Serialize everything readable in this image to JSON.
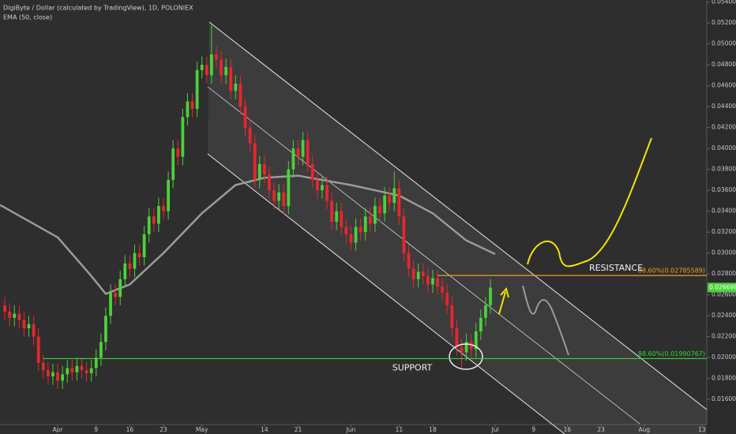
{
  "chart_data": {
    "type": "candlestick",
    "title": "DigiByte / Dollar (calculated by TradingView), 1D, POLONIEX",
    "x": [
      "Mar 21",
      "Mar 22",
      "Mar 23",
      "Mar 24",
      "Mar 25",
      "Mar 26",
      "Mar 27",
      "Mar 28",
      "Mar 29",
      "Mar 30",
      "Mar 31",
      "Apr 1",
      "Apr 2",
      "Apr 3",
      "Apr 4",
      "Apr 5",
      "Apr 6",
      "Apr 7",
      "Apr 8",
      "Apr 9",
      "Apr 10",
      "Apr 11",
      "Apr 12",
      "Apr 13",
      "Apr 14",
      "Apr 15",
      "Apr 16",
      "Apr 17",
      "Apr 18",
      "Apr 19",
      "Apr 20",
      "Apr 21",
      "Apr 22",
      "Apr 23",
      "Apr 24",
      "Apr 25",
      "Apr 26",
      "Apr 27",
      "Apr 28",
      "Apr 29",
      "Apr 30",
      "May 1",
      "May 2",
      "May 3",
      "May 4",
      "May 5",
      "May 6",
      "May 7",
      "May 8",
      "May 9",
      "May 10",
      "May 11",
      "May 12",
      "May 13",
      "May 14",
      "May 15",
      "May 16",
      "May 17",
      "May 18",
      "May 19",
      "May 20",
      "May 21",
      "May 22",
      "May 23",
      "May 24",
      "May 25",
      "May 26",
      "May 27",
      "May 28",
      "May 29",
      "May 30",
      "May 31",
      "Jun 1",
      "Jun 2",
      "Jun 3",
      "Jun 4",
      "Jun 5",
      "Jun 6",
      "Jun 7",
      "Jun 8",
      "Jun 9",
      "Jun 10",
      "Jun 11",
      "Jun 12",
      "Jun 13",
      "Jun 14",
      "Jun 15",
      "Jun 16",
      "Jun 17",
      "Jun 18",
      "Jun 19",
      "Jun 20",
      "Jun 21",
      "Jun 22",
      "Jun 23",
      "Jun 24",
      "Jun 25",
      "Jun 26",
      "Jun 27",
      "Jun 28",
      "Jun 29",
      "Jun 30"
    ],
    "open": [
      0.025,
      0.0244,
      0.0238,
      0.0242,
      0.0236,
      0.0228,
      0.0232,
      0.022,
      0.0195,
      0.0188,
      0.0182,
      0.0186,
      0.0178,
      0.0184,
      0.019,
      0.0186,
      0.0192,
      0.0188,
      0.0185,
      0.019,
      0.02,
      0.0215,
      0.024,
      0.0262,
      0.0258,
      0.0275,
      0.029,
      0.0285,
      0.03,
      0.0296,
      0.0318,
      0.0335,
      0.0328,
      0.0345,
      0.034,
      0.037,
      0.04,
      0.0392,
      0.043,
      0.0445,
      0.0438,
      0.0475,
      0.048,
      0.047,
      0.049,
      0.0485,
      0.047,
      0.0478,
      0.0455,
      0.0462,
      0.044,
      0.042,
      0.0405,
      0.037,
      0.0385,
      0.0375,
      0.036,
      0.035,
      0.0358,
      0.0345,
      0.038,
      0.04,
      0.0392,
      0.0408,
      0.0385,
      0.037,
      0.036,
      0.0365,
      0.035,
      0.033,
      0.034,
      0.0325,
      0.0318,
      0.031,
      0.0325,
      0.032,
      0.0335,
      0.0328,
      0.0345,
      0.0338,
      0.0355,
      0.0348,
      0.0362,
      0.0335,
      0.03,
      0.0285,
      0.0275,
      0.0282,
      0.0278,
      0.027,
      0.0276,
      0.0268,
      0.0262,
      0.025,
      0.0228,
      0.021,
      0.0205,
      0.0215,
      0.0208,
      0.0225,
      0.0238,
      0.025
    ],
    "high": [
      0.0258,
      0.0252,
      0.025,
      0.025,
      0.0244,
      0.024,
      0.024,
      0.0228,
      0.0203,
      0.0196,
      0.0194,
      0.0194,
      0.0192,
      0.0198,
      0.0198,
      0.02,
      0.02,
      0.0196,
      0.0198,
      0.0208,
      0.0223,
      0.0248,
      0.027,
      0.027,
      0.0283,
      0.0298,
      0.0298,
      0.0308,
      0.0308,
      0.0326,
      0.0343,
      0.0343,
      0.0353,
      0.0353,
      0.0378,
      0.0408,
      0.0408,
      0.0438,
      0.0453,
      0.0453,
      0.0483,
      0.0488,
      0.0488,
      0.0518,
      0.0498,
      0.0493,
      0.0486,
      0.0486,
      0.047,
      0.047,
      0.0448,
      0.0428,
      0.0413,
      0.0393,
      0.0393,
      0.0383,
      0.0368,
      0.0366,
      0.0366,
      0.0388,
      0.0408,
      0.0408,
      0.0416,
      0.0416,
      0.0393,
      0.0378,
      0.0373,
      0.0373,
      0.0358,
      0.0348,
      0.0348,
      0.0333,
      0.0326,
      0.0333,
      0.0333,
      0.0343,
      0.0343,
      0.0353,
      0.0353,
      0.0363,
      0.0363,
      0.0378,
      0.037,
      0.0343,
      0.0308,
      0.0293,
      0.029,
      0.029,
      0.0286,
      0.0284,
      0.0284,
      0.0276,
      0.027,
      0.0258,
      0.0236,
      0.0218,
      0.0223,
      0.0223,
      0.0233,
      0.0246,
      0.0258,
      0.0275
    ],
    "low": [
      0.0236,
      0.023,
      0.023,
      0.0228,
      0.022,
      0.022,
      0.0212,
      0.0187,
      0.018,
      0.0174,
      0.0174,
      0.017,
      0.017,
      0.0176,
      0.0178,
      0.0178,
      0.018,
      0.0177,
      0.0177,
      0.0182,
      0.0192,
      0.0207,
      0.0232,
      0.025,
      0.025,
      0.0267,
      0.0277,
      0.0277,
      0.0288,
      0.0288,
      0.031,
      0.032,
      0.032,
      0.0332,
      0.0332,
      0.0362,
      0.0384,
      0.0384,
      0.0422,
      0.043,
      0.043,
      0.0467,
      0.0462,
      0.0462,
      0.0477,
      0.0462,
      0.0462,
      0.0447,
      0.0447,
      0.0432,
      0.0412,
      0.0397,
      0.0362,
      0.0362,
      0.0367,
      0.0352,
      0.0342,
      0.0342,
      0.0337,
      0.0337,
      0.0372,
      0.0384,
      0.0384,
      0.0377,
      0.0362,
      0.0352,
      0.0352,
      0.0342,
      0.0322,
      0.0322,
      0.0317,
      0.031,
      0.0302,
      0.0302,
      0.0312,
      0.0312,
      0.032,
      0.032,
      0.033,
      0.033,
      0.034,
      0.034,
      0.0327,
      0.0292,
      0.0277,
      0.0267,
      0.0267,
      0.027,
      0.0262,
      0.0262,
      0.026,
      0.0254,
      0.0242,
      0.022,
      0.0202,
      0.019,
      0.0197,
      0.02,
      0.02,
      0.0217,
      0.023,
      0.0242
    ],
    "close": [
      0.0244,
      0.0238,
      0.0242,
      0.0236,
      0.0228,
      0.0232,
      0.022,
      0.0195,
      0.0188,
      0.0182,
      0.0186,
      0.0178,
      0.0184,
      0.019,
      0.0186,
      0.0192,
      0.0188,
      0.0185,
      0.019,
      0.02,
      0.0215,
      0.024,
      0.0262,
      0.0258,
      0.0275,
      0.029,
      0.0285,
      0.03,
      0.0296,
      0.0318,
      0.0335,
      0.0328,
      0.0345,
      0.034,
      0.037,
      0.04,
      0.0392,
      0.043,
      0.0445,
      0.0438,
      0.0475,
      0.048,
      0.047,
      0.049,
      0.0485,
      0.047,
      0.0478,
      0.0455,
      0.0462,
      0.044,
      0.042,
      0.0405,
      0.037,
      0.0385,
      0.0375,
      0.036,
      0.035,
      0.0358,
      0.0345,
      0.038,
      0.04,
      0.0392,
      0.0408,
      0.0385,
      0.037,
      0.036,
      0.0365,
      0.035,
      0.033,
      0.034,
      0.0325,
      0.0318,
      0.031,
      0.0325,
      0.032,
      0.0335,
      0.0328,
      0.0345,
      0.0338,
      0.0355,
      0.0348,
      0.0362,
      0.0335,
      0.03,
      0.0285,
      0.0275,
      0.0282,
      0.0278,
      0.027,
      0.0276,
      0.0268,
      0.0262,
      0.025,
      0.0228,
      0.021,
      0.0205,
      0.0215,
      0.0208,
      0.0225,
      0.0238,
      0.025,
      0.0267
    ],
    "up_color": "#4cd13a",
    "down_color": "#e8262f",
    "ema": {
      "name": "EMA (50, close)",
      "color": "#9a9a9a",
      "x": [
        "Mar 20",
        "Apr 1",
        "Apr 8",
        "Apr 11",
        "Apr 16",
        "Apr 23",
        "May 1",
        "May 8",
        "May 14",
        "May 21",
        "Jun 1",
        "Jun 11",
        "Jun 18",
        "Jun 25",
        "Jul 1"
      ],
      "values": [
        0.0346,
        0.0315,
        0.0278,
        0.0261,
        0.027,
        0.03,
        0.0338,
        0.0365,
        0.0372,
        0.0374,
        0.0365,
        0.0355,
        0.0338,
        0.0312,
        0.0299
      ]
    },
    "levels": [
      {
        "name": "RESISTANCE",
        "value": 0.02785589,
        "label": "88.60%(0.02785589)",
        "color": "#f0a020"
      },
      {
        "name": "SUPPORT",
        "value": 0.01990767,
        "label": "88.60%(0.01990767)",
        "color": "#35d335"
      }
    ],
    "last_price": 0.02669845,
    "xlim": [
      "Mar 20",
      "Aug 14"
    ],
    "xticks": [
      {
        "value": "Apr 1",
        "label": "Apr"
      },
      {
        "value": "Apr 9",
        "label": "9"
      },
      {
        "value": "Apr 16",
        "label": "16"
      },
      {
        "value": "Apr 23",
        "label": "23"
      },
      {
        "value": "May 1",
        "label": "May"
      },
      {
        "value": "May 14",
        "label": "14"
      },
      {
        "value": "May 21",
        "label": "21"
      },
      {
        "value": "Jun 1",
        "label": "Jun"
      },
      {
        "value": "Jun 11",
        "label": "11"
      },
      {
        "value": "Jun 18",
        "label": "18"
      },
      {
        "value": "Jul 1",
        "label": "Jul"
      },
      {
        "value": "Jul 9",
        "label": "9"
      },
      {
        "value": "Jul 16",
        "label": "16"
      },
      {
        "value": "Jul 23",
        "label": "23"
      },
      {
        "value": "Aug 1",
        "label": "Aug"
      },
      {
        "value": "Aug 13",
        "label": "13"
      }
    ],
    "ylim": [
      0.0136,
      0.0542
    ],
    "yticks": [
      {
        "value": 0.016,
        "label": "0.01600000"
      },
      {
        "value": 0.018,
        "label": "0.01800000"
      },
      {
        "value": 0.02,
        "label": "0.02000000"
      },
      {
        "value": 0.022,
        "label": "0.02200000"
      },
      {
        "value": 0.024,
        "label": "0.02400000"
      },
      {
        "value": 0.026,
        "label": "0.02600000"
      },
      {
        "value": 0.028,
        "label": "0.02800000"
      },
      {
        "value": 0.03,
        "label": "0.03000000"
      },
      {
        "value": 0.032,
        "label": "0.03200000"
      },
      {
        "value": 0.034,
        "label": "0.03400000"
      },
      {
        "value": 0.036,
        "label": "0.03600000"
      },
      {
        "value": 0.038,
        "label": "0.03800000"
      },
      {
        "value": 0.04,
        "label": "0.04000000"
      },
      {
        "value": 0.042,
        "label": "0.04200000"
      },
      {
        "value": 0.044,
        "label": "0.04400000"
      },
      {
        "value": 0.046,
        "label": "0.04600000"
      },
      {
        "value": 0.048,
        "label": "0.04800000"
      },
      {
        "value": 0.05,
        "label": "0.05000000"
      },
      {
        "value": 0.052,
        "label": "0.05200000"
      },
      {
        "value": 0.054,
        "label": "0.05400000"
      }
    ]
  }
}
